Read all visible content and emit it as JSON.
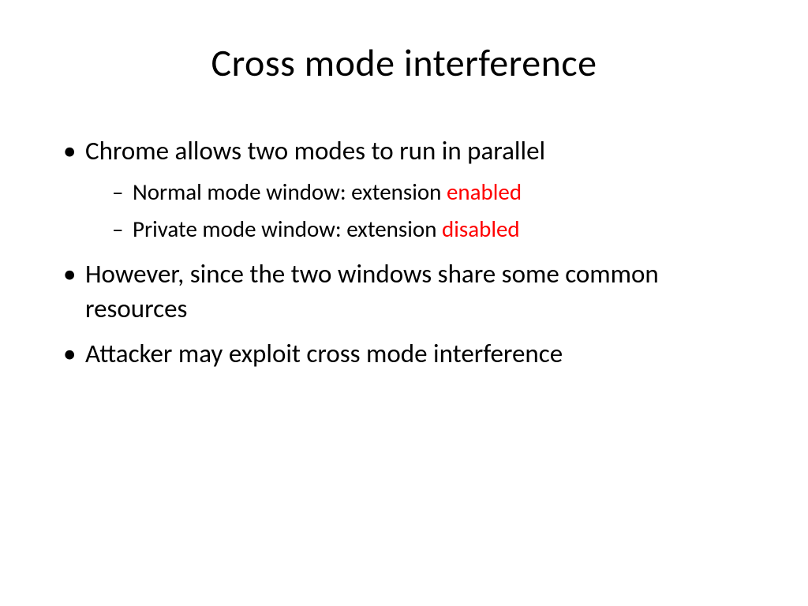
{
  "slide": {
    "title": "Cross mode interference",
    "bullets": {
      "b1": "Chrome allows two modes to run in parallel",
      "sub1_prefix": "Normal mode window: extension ",
      "sub1_highlight": "enabled",
      "sub2_prefix": "Private mode window: extension ",
      "sub2_highlight": "disabled",
      "b2": "However, since the two windows share some common resources",
      "b3": "Attacker may exploit cross mode interference"
    },
    "colors": {
      "text": "#000000",
      "highlight": "#ff0000",
      "background": "#ffffff"
    },
    "typography": {
      "title_fontsize": 48,
      "body_fontsize": 33,
      "sub_fontsize": 29,
      "font_family": "Calibri"
    }
  }
}
